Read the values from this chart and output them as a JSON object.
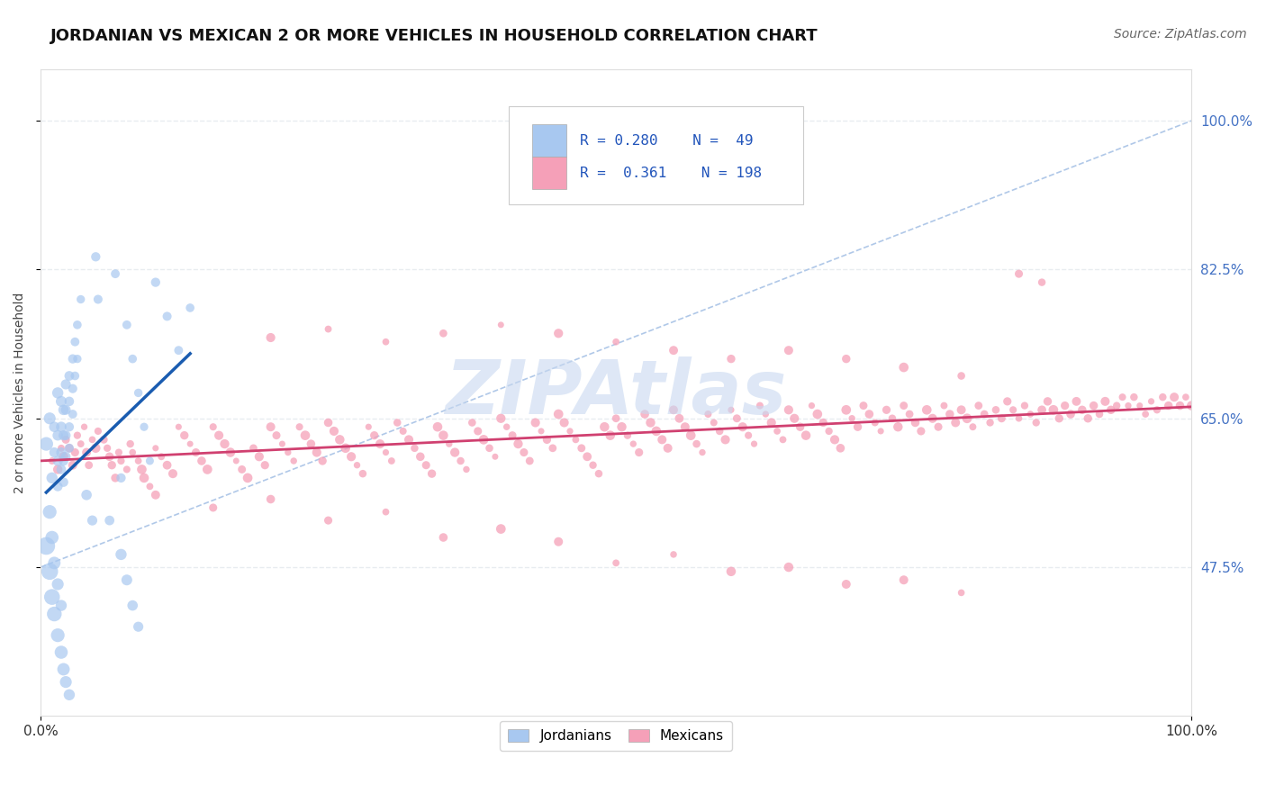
{
  "title": "JORDANIAN VS MEXICAN 2 OR MORE VEHICLES IN HOUSEHOLD CORRELATION CHART",
  "source": "Source: ZipAtlas.com",
  "ylabel": "2 or more Vehicles in Household",
  "xlim": [
    0.0,
    1.0
  ],
  "ylim": [
    0.3,
    1.06
  ],
  "right_yticks": [
    0.475,
    0.65,
    0.825,
    1.0
  ],
  "right_yticklabels": [
    "47.5%",
    "65.0%",
    "82.5%",
    "100.0%"
  ],
  "xticks": [
    0.0,
    1.0
  ],
  "xticklabels": [
    "0.0%",
    "100.0%"
  ],
  "title_fontsize": 13,
  "source_fontsize": 10,
  "legend_label1": "Jordanians",
  "legend_label2": "Mexicans",
  "jordanian_color": "#a8c8f0",
  "mexican_color": "#f5a0b8",
  "jordanian_trend_color": "#1a5cb0",
  "mexican_trend_color": "#d04070",
  "ref_line_color": "#b0c8e8",
  "background_color": "#ffffff",
  "grid_color": "#e8ecf0",
  "watermark": "ZIPAtlas",
  "watermark_color": "#c8d8f0",
  "watermark_fontsize": 60,
  "jordanian_points": [
    [
      0.005,
      0.62
    ],
    [
      0.008,
      0.65
    ],
    [
      0.01,
      0.58
    ],
    [
      0.012,
      0.64
    ],
    [
      0.012,
      0.61
    ],
    [
      0.015,
      0.68
    ],
    [
      0.015,
      0.63
    ],
    [
      0.015,
      0.6
    ],
    [
      0.015,
      0.57
    ],
    [
      0.018,
      0.67
    ],
    [
      0.018,
      0.64
    ],
    [
      0.018,
      0.61
    ],
    [
      0.018,
      0.59
    ],
    [
      0.02,
      0.66
    ],
    [
      0.02,
      0.63
    ],
    [
      0.02,
      0.6
    ],
    [
      0.02,
      0.575
    ],
    [
      0.022,
      0.69
    ],
    [
      0.022,
      0.66
    ],
    [
      0.022,
      0.63
    ],
    [
      0.022,
      0.605
    ],
    [
      0.025,
      0.7
    ],
    [
      0.025,
      0.67
    ],
    [
      0.025,
      0.64
    ],
    [
      0.025,
      0.615
    ],
    [
      0.028,
      0.72
    ],
    [
      0.028,
      0.685
    ],
    [
      0.028,
      0.655
    ],
    [
      0.03,
      0.74
    ],
    [
      0.03,
      0.7
    ],
    [
      0.032,
      0.76
    ],
    [
      0.032,
      0.72
    ],
    [
      0.035,
      0.79
    ],
    [
      0.04,
      0.56
    ],
    [
      0.045,
      0.53
    ],
    [
      0.048,
      0.84
    ],
    [
      0.05,
      0.79
    ],
    [
      0.06,
      0.53
    ],
    [
      0.065,
      0.82
    ],
    [
      0.07,
      0.58
    ],
    [
      0.075,
      0.76
    ],
    [
      0.08,
      0.72
    ],
    [
      0.085,
      0.68
    ],
    [
      0.09,
      0.64
    ],
    [
      0.095,
      0.6
    ],
    [
      0.1,
      0.81
    ],
    [
      0.11,
      0.77
    ],
    [
      0.12,
      0.73
    ],
    [
      0.13,
      0.78
    ],
    [
      0.005,
      0.5
    ],
    [
      0.008,
      0.47
    ],
    [
      0.01,
      0.44
    ],
    [
      0.012,
      0.42
    ],
    [
      0.015,
      0.395
    ],
    [
      0.018,
      0.375
    ],
    [
      0.02,
      0.355
    ],
    [
      0.022,
      0.34
    ],
    [
      0.025,
      0.325
    ],
    [
      0.008,
      0.54
    ],
    [
      0.01,
      0.51
    ],
    [
      0.012,
      0.48
    ],
    [
      0.015,
      0.455
    ],
    [
      0.018,
      0.43
    ],
    [
      0.07,
      0.49
    ],
    [
      0.075,
      0.46
    ],
    [
      0.08,
      0.43
    ],
    [
      0.085,
      0.405
    ]
  ],
  "jordanian_sizes": [
    120,
    90,
    80,
    70,
    65,
    80,
    70,
    65,
    60,
    75,
    70,
    65,
    60,
    70,
    65,
    60,
    58,
    65,
    62,
    60,
    58,
    60,
    58,
    55,
    53,
    55,
    53,
    50,
    50,
    48,
    48,
    45,
    45,
    70,
    65,
    55,
    52,
    60,
    50,
    55,
    50,
    48,
    46,
    44,
    42,
    55,
    52,
    50,
    48,
    200,
    180,
    160,
    140,
    120,
    110,
    100,
    90,
    80,
    120,
    110,
    100,
    90,
    80,
    80,
    75,
    70,
    65
  ],
  "mexican_points": [
    [
      0.01,
      0.6
    ],
    [
      0.015,
      0.59
    ],
    [
      0.018,
      0.615
    ],
    [
      0.02,
      0.605
    ],
    [
      0.022,
      0.625
    ],
    [
      0.025,
      0.615
    ],
    [
      0.028,
      0.595
    ],
    [
      0.03,
      0.61
    ],
    [
      0.032,
      0.63
    ],
    [
      0.035,
      0.62
    ],
    [
      0.038,
      0.64
    ],
    [
      0.04,
      0.61
    ],
    [
      0.042,
      0.595
    ],
    [
      0.045,
      0.625
    ],
    [
      0.048,
      0.615
    ],
    [
      0.05,
      0.635
    ],
    [
      0.055,
      0.625
    ],
    [
      0.058,
      0.615
    ],
    [
      0.06,
      0.605
    ],
    [
      0.062,
      0.595
    ],
    [
      0.065,
      0.58
    ],
    [
      0.068,
      0.61
    ],
    [
      0.07,
      0.6
    ],
    [
      0.075,
      0.59
    ],
    [
      0.078,
      0.62
    ],
    [
      0.08,
      0.61
    ],
    [
      0.085,
      0.6
    ],
    [
      0.088,
      0.59
    ],
    [
      0.09,
      0.58
    ],
    [
      0.095,
      0.57
    ],
    [
      0.1,
      0.615
    ],
    [
      0.105,
      0.605
    ],
    [
      0.11,
      0.595
    ],
    [
      0.115,
      0.585
    ],
    [
      0.12,
      0.64
    ],
    [
      0.125,
      0.63
    ],
    [
      0.13,
      0.62
    ],
    [
      0.135,
      0.61
    ],
    [
      0.14,
      0.6
    ],
    [
      0.145,
      0.59
    ],
    [
      0.15,
      0.64
    ],
    [
      0.155,
      0.63
    ],
    [
      0.16,
      0.62
    ],
    [
      0.165,
      0.61
    ],
    [
      0.17,
      0.6
    ],
    [
      0.175,
      0.59
    ],
    [
      0.18,
      0.58
    ],
    [
      0.185,
      0.615
    ],
    [
      0.19,
      0.605
    ],
    [
      0.195,
      0.595
    ],
    [
      0.2,
      0.64
    ],
    [
      0.205,
      0.63
    ],
    [
      0.21,
      0.62
    ],
    [
      0.215,
      0.61
    ],
    [
      0.22,
      0.6
    ],
    [
      0.225,
      0.64
    ],
    [
      0.23,
      0.63
    ],
    [
      0.235,
      0.62
    ],
    [
      0.24,
      0.61
    ],
    [
      0.245,
      0.6
    ],
    [
      0.25,
      0.645
    ],
    [
      0.255,
      0.635
    ],
    [
      0.26,
      0.625
    ],
    [
      0.265,
      0.615
    ],
    [
      0.27,
      0.605
    ],
    [
      0.275,
      0.595
    ],
    [
      0.28,
      0.585
    ],
    [
      0.285,
      0.64
    ],
    [
      0.29,
      0.63
    ],
    [
      0.295,
      0.62
    ],
    [
      0.3,
      0.61
    ],
    [
      0.305,
      0.6
    ],
    [
      0.31,
      0.645
    ],
    [
      0.315,
      0.635
    ],
    [
      0.32,
      0.625
    ],
    [
      0.325,
      0.615
    ],
    [
      0.33,
      0.605
    ],
    [
      0.335,
      0.595
    ],
    [
      0.34,
      0.585
    ],
    [
      0.345,
      0.64
    ],
    [
      0.35,
      0.63
    ],
    [
      0.355,
      0.62
    ],
    [
      0.36,
      0.61
    ],
    [
      0.365,
      0.6
    ],
    [
      0.37,
      0.59
    ],
    [
      0.375,
      0.645
    ],
    [
      0.38,
      0.635
    ],
    [
      0.385,
      0.625
    ],
    [
      0.39,
      0.615
    ],
    [
      0.395,
      0.605
    ],
    [
      0.4,
      0.65
    ],
    [
      0.405,
      0.64
    ],
    [
      0.41,
      0.63
    ],
    [
      0.415,
      0.62
    ],
    [
      0.42,
      0.61
    ],
    [
      0.425,
      0.6
    ],
    [
      0.43,
      0.645
    ],
    [
      0.435,
      0.635
    ],
    [
      0.44,
      0.625
    ],
    [
      0.445,
      0.615
    ],
    [
      0.45,
      0.655
    ],
    [
      0.455,
      0.645
    ],
    [
      0.46,
      0.635
    ],
    [
      0.465,
      0.625
    ],
    [
      0.47,
      0.615
    ],
    [
      0.475,
      0.605
    ],
    [
      0.48,
      0.595
    ],
    [
      0.485,
      0.585
    ],
    [
      0.49,
      0.64
    ],
    [
      0.495,
      0.63
    ],
    [
      0.5,
      0.65
    ],
    [
      0.505,
      0.64
    ],
    [
      0.51,
      0.63
    ],
    [
      0.515,
      0.62
    ],
    [
      0.52,
      0.61
    ],
    [
      0.525,
      0.655
    ],
    [
      0.53,
      0.645
    ],
    [
      0.535,
      0.635
    ],
    [
      0.54,
      0.625
    ],
    [
      0.545,
      0.615
    ],
    [
      0.55,
      0.66
    ],
    [
      0.555,
      0.65
    ],
    [
      0.56,
      0.64
    ],
    [
      0.565,
      0.63
    ],
    [
      0.57,
      0.62
    ],
    [
      0.575,
      0.61
    ],
    [
      0.58,
      0.655
    ],
    [
      0.585,
      0.645
    ],
    [
      0.59,
      0.635
    ],
    [
      0.595,
      0.625
    ],
    [
      0.6,
      0.66
    ],
    [
      0.605,
      0.65
    ],
    [
      0.61,
      0.64
    ],
    [
      0.615,
      0.63
    ],
    [
      0.62,
      0.62
    ],
    [
      0.625,
      0.665
    ],
    [
      0.63,
      0.655
    ],
    [
      0.635,
      0.645
    ],
    [
      0.64,
      0.635
    ],
    [
      0.645,
      0.625
    ],
    [
      0.65,
      0.66
    ],
    [
      0.655,
      0.65
    ],
    [
      0.66,
      0.64
    ],
    [
      0.665,
      0.63
    ],
    [
      0.67,
      0.665
    ],
    [
      0.675,
      0.655
    ],
    [
      0.68,
      0.645
    ],
    [
      0.685,
      0.635
    ],
    [
      0.69,
      0.625
    ],
    [
      0.695,
      0.615
    ],
    [
      0.7,
      0.66
    ],
    [
      0.705,
      0.65
    ],
    [
      0.71,
      0.64
    ],
    [
      0.715,
      0.665
    ],
    [
      0.72,
      0.655
    ],
    [
      0.725,
      0.645
    ],
    [
      0.73,
      0.635
    ],
    [
      0.735,
      0.66
    ],
    [
      0.74,
      0.65
    ],
    [
      0.745,
      0.64
    ],
    [
      0.75,
      0.665
    ],
    [
      0.755,
      0.655
    ],
    [
      0.76,
      0.645
    ],
    [
      0.765,
      0.635
    ],
    [
      0.77,
      0.66
    ],
    [
      0.775,
      0.65
    ],
    [
      0.78,
      0.64
    ],
    [
      0.785,
      0.665
    ],
    [
      0.79,
      0.655
    ],
    [
      0.795,
      0.645
    ],
    [
      0.8,
      0.66
    ],
    [
      0.805,
      0.65
    ],
    [
      0.81,
      0.64
    ],
    [
      0.815,
      0.665
    ],
    [
      0.82,
      0.655
    ],
    [
      0.825,
      0.645
    ],
    [
      0.83,
      0.66
    ],
    [
      0.835,
      0.65
    ],
    [
      0.84,
      0.67
    ],
    [
      0.845,
      0.66
    ],
    [
      0.85,
      0.65
    ],
    [
      0.855,
      0.665
    ],
    [
      0.86,
      0.655
    ],
    [
      0.865,
      0.645
    ],
    [
      0.87,
      0.66
    ],
    [
      0.875,
      0.67
    ],
    [
      0.88,
      0.66
    ],
    [
      0.885,
      0.65
    ],
    [
      0.89,
      0.665
    ],
    [
      0.895,
      0.655
    ],
    [
      0.9,
      0.67
    ],
    [
      0.905,
      0.66
    ],
    [
      0.91,
      0.65
    ],
    [
      0.915,
      0.665
    ],
    [
      0.92,
      0.655
    ],
    [
      0.925,
      0.67
    ],
    [
      0.93,
      0.66
    ],
    [
      0.935,
      0.665
    ],
    [
      0.94,
      0.675
    ],
    [
      0.945,
      0.665
    ],
    [
      0.95,
      0.675
    ],
    [
      0.955,
      0.665
    ],
    [
      0.96,
      0.655
    ],
    [
      0.965,
      0.67
    ],
    [
      0.97,
      0.66
    ],
    [
      0.975,
      0.675
    ],
    [
      0.98,
      0.665
    ],
    [
      0.985,
      0.675
    ],
    [
      0.99,
      0.665
    ],
    [
      0.995,
      0.675
    ],
    [
      1.0,
      0.665
    ],
    [
      0.1,
      0.56
    ],
    [
      0.15,
      0.545
    ],
    [
      0.2,
      0.555
    ],
    [
      0.25,
      0.53
    ],
    [
      0.3,
      0.54
    ],
    [
      0.35,
      0.51
    ],
    [
      0.4,
      0.52
    ],
    [
      0.45,
      0.505
    ],
    [
      0.5,
      0.48
    ],
    [
      0.55,
      0.49
    ],
    [
      0.6,
      0.47
    ],
    [
      0.65,
      0.475
    ],
    [
      0.7,
      0.455
    ],
    [
      0.75,
      0.46
    ],
    [
      0.8,
      0.445
    ],
    [
      0.2,
      0.745
    ],
    [
      0.25,
      0.755
    ],
    [
      0.3,
      0.74
    ],
    [
      0.35,
      0.75
    ],
    [
      0.4,
      0.76
    ],
    [
      0.45,
      0.75
    ],
    [
      0.5,
      0.74
    ],
    [
      0.55,
      0.73
    ],
    [
      0.6,
      0.72
    ],
    [
      0.65,
      0.73
    ],
    [
      0.7,
      0.72
    ],
    [
      0.75,
      0.71
    ],
    [
      0.8,
      0.7
    ],
    [
      0.85,
      0.82
    ],
    [
      0.87,
      0.81
    ]
  ]
}
